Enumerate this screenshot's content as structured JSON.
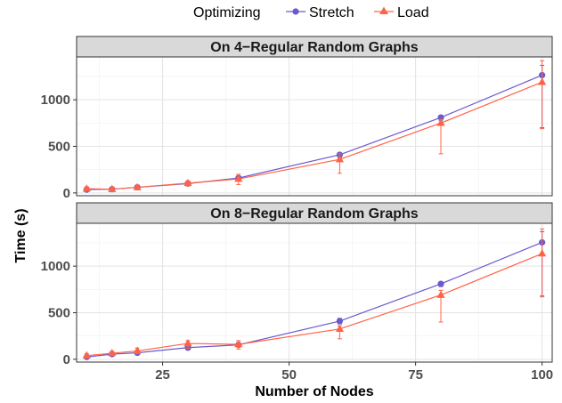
{
  "chart_data": {
    "type": "line",
    "legend": {
      "title": "Optimizing",
      "placement": "top"
    },
    "xlabel": "Number of Nodes",
    "ylabel": "Time (s)",
    "xlim": [
      8,
      102
    ],
    "ylim": [
      -30,
      1460
    ],
    "xticks": [
      25,
      50,
      75,
      100
    ],
    "yticks": [
      0,
      500,
      1000
    ],
    "grid": true,
    "series_styles": [
      {
        "name": "Stretch",
        "color": "#6A5ACD",
        "marker": "circle"
      },
      {
        "name": "Load",
        "color": "#FF6347",
        "marker": "triangle"
      }
    ],
    "panels": [
      {
        "title": "On 4−Regular Random Graphs",
        "series": [
          {
            "name": "Stretch",
            "x": [
              10,
              15,
              20,
              30,
              40,
              60,
              80,
              100
            ],
            "y": [
              35,
              40,
              60,
              100,
              160,
              410,
              810,
              1265
            ],
            "err_low": [
              25,
              30,
              45,
              85,
              140,
              380,
              780,
              700
            ],
            "err_high": [
              45,
              50,
              75,
              115,
              180,
              430,
              830,
              1370
            ]
          },
          {
            "name": "Load",
            "x": [
              10,
              15,
              20,
              30,
              40,
              60,
              80,
              100
            ],
            "y": [
              45,
              40,
              60,
              105,
              150,
              360,
              750,
              1190
            ],
            "err_low": [
              25,
              20,
              35,
              75,
              90,
              210,
              420,
              690
            ],
            "err_high": [
              65,
              60,
              85,
              130,
              200,
              420,
              790,
              1420
            ]
          }
        ]
      },
      {
        "title": "On 8−Regular Random Graphs",
        "series": [
          {
            "name": "Stretch",
            "x": [
              10,
              15,
              20,
              30,
              40,
              60,
              80,
              100
            ],
            "y": [
              25,
              55,
              70,
              125,
              155,
              410,
              810,
              1255
            ],
            "err_low": [
              15,
              45,
              55,
              100,
              135,
              380,
              780,
              680
            ],
            "err_high": [
              35,
              65,
              85,
              150,
              175,
              440,
              830,
              1370
            ]
          },
          {
            "name": "Load",
            "x": [
              10,
              15,
              20,
              30,
              40,
              60,
              80,
              100
            ],
            "y": [
              40,
              65,
              90,
              170,
              160,
              325,
              690,
              1135
            ],
            "err_low": [
              20,
              45,
              60,
              120,
              110,
              220,
              400,
              670
            ],
            "err_high": [
              60,
              85,
              120,
              200,
              200,
              360,
              740,
              1400
            ]
          }
        ]
      }
    ]
  }
}
